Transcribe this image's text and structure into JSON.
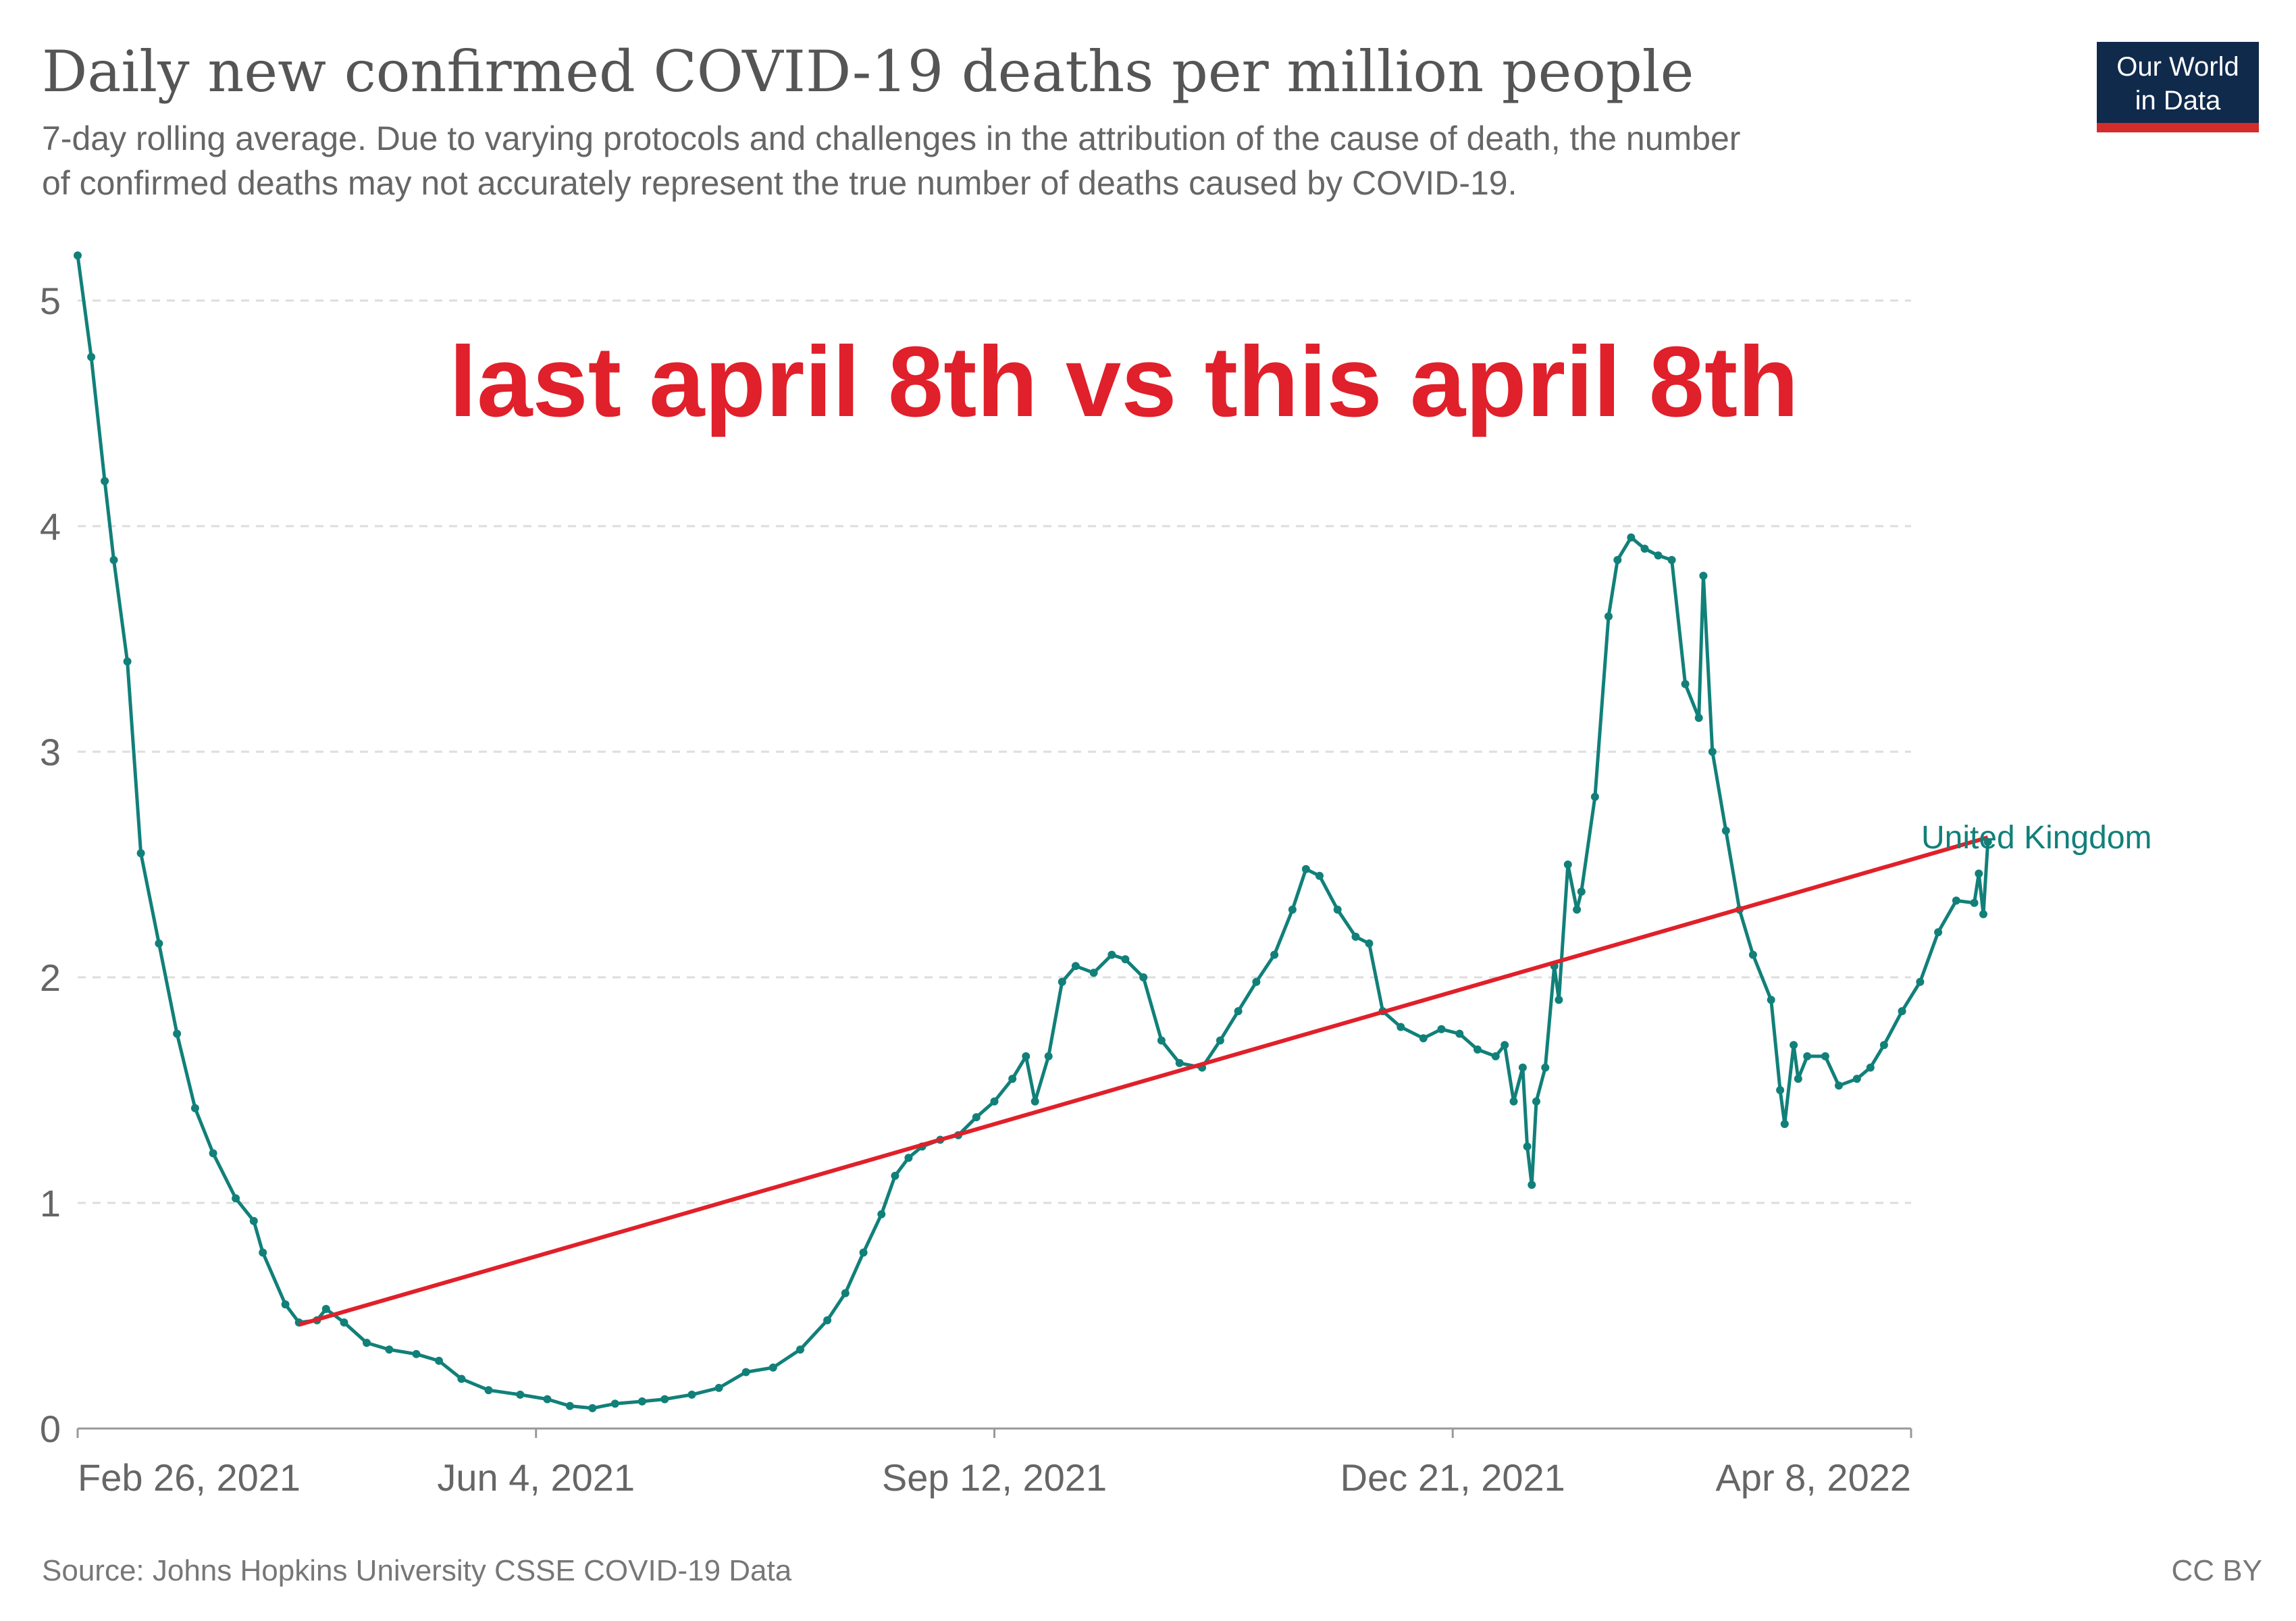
{
  "title": "Daily new confirmed COVID-19 deaths per million people",
  "subtitle_line1": "7-day rolling average. Due to varying protocols and challenges in the attribution of the cause of death, the number",
  "subtitle_line2": "of confirmed deaths may not accurately represent the true number of deaths caused by COVID-19.",
  "logo_line1": "Our World",
  "logo_line2": "in Data",
  "annotation": "last april 8th vs this april 8th",
  "source": "Source: Johns Hopkins University CSSE COVID-19 Data",
  "license": "CC BY",
  "colors": {
    "series": "#118079",
    "annotation": "#e0202a",
    "logo_bg": "#102a4c",
    "logo_stripe": "#d42b2b"
  },
  "chart_data": {
    "type": "line",
    "ylim": [
      0,
      5
    ],
    "yticks": [
      "0",
      "1",
      "2",
      "3",
      "4",
      "5"
    ],
    "xticks": [
      "Feb 26, 2021",
      "Jun 4, 2021",
      "Sep 12, 2021",
      "Dec 21, 2021",
      "Apr 8, 2022"
    ],
    "xlim": [
      "2021-02-26",
      "2022-04-08"
    ],
    "grid": true,
    "series": [
      {
        "name": "United Kingdom",
        "points": [
          [
            "2021-02-26",
            5.2
          ],
          [
            "2021-03-01",
            4.75
          ],
          [
            "2021-03-04",
            4.2
          ],
          [
            "2021-03-06",
            3.85
          ],
          [
            "2021-03-09",
            3.4
          ],
          [
            "2021-03-12",
            2.55
          ],
          [
            "2021-03-16",
            2.15
          ],
          [
            "2021-03-20",
            1.75
          ],
          [
            "2021-03-24",
            1.42
          ],
          [
            "2021-03-28",
            1.22
          ],
          [
            "2021-04-02",
            1.02
          ],
          [
            "2021-04-06",
            0.92
          ],
          [
            "2021-04-08",
            0.78
          ],
          [
            "2021-04-13",
            0.55
          ],
          [
            "2021-04-16",
            0.47
          ],
          [
            "2021-04-20",
            0.48
          ],
          [
            "2021-04-22",
            0.53
          ],
          [
            "2021-04-26",
            0.47
          ],
          [
            "2021-05-01",
            0.38
          ],
          [
            "2021-05-06",
            0.35
          ],
          [
            "2021-05-12",
            0.33
          ],
          [
            "2021-05-17",
            0.3
          ],
          [
            "2021-05-22",
            0.22
          ],
          [
            "2021-05-28",
            0.17
          ],
          [
            "2021-06-04",
            0.15
          ],
          [
            "2021-06-10",
            0.13
          ],
          [
            "2021-06-15",
            0.1
          ],
          [
            "2021-06-20",
            0.09
          ],
          [
            "2021-06-25",
            0.11
          ],
          [
            "2021-07-01",
            0.12
          ],
          [
            "2021-07-06",
            0.13
          ],
          [
            "2021-07-12",
            0.15
          ],
          [
            "2021-07-18",
            0.18
          ],
          [
            "2021-07-24",
            0.25
          ],
          [
            "2021-07-30",
            0.27
          ],
          [
            "2021-08-05",
            0.35
          ],
          [
            "2021-08-11",
            0.48
          ],
          [
            "2021-08-15",
            0.6
          ],
          [
            "2021-08-19",
            0.78
          ],
          [
            "2021-08-23",
            0.95
          ],
          [
            "2021-08-26",
            1.12
          ],
          [
            "2021-08-29",
            1.2
          ],
          [
            "2021-09-01",
            1.25
          ],
          [
            "2021-09-05",
            1.28
          ],
          [
            "2021-09-09",
            1.3
          ],
          [
            "2021-09-13",
            1.38
          ],
          [
            "2021-09-17",
            1.45
          ],
          [
            "2021-09-21",
            1.55
          ],
          [
            "2021-09-24",
            1.65
          ],
          [
            "2021-09-26",
            1.45
          ],
          [
            "2021-09-29",
            1.65
          ],
          [
            "2021-10-02",
            1.98
          ],
          [
            "2021-10-05",
            2.05
          ],
          [
            "2021-10-09",
            2.02
          ],
          [
            "2021-10-13",
            2.1
          ],
          [
            "2021-10-16",
            2.08
          ],
          [
            "2021-10-20",
            2.0
          ],
          [
            "2021-10-24",
            1.72
          ],
          [
            "2021-10-28",
            1.62
          ],
          [
            "2021-11-02",
            1.6
          ],
          [
            "2021-11-06",
            1.72
          ],
          [
            "2021-11-10",
            1.85
          ],
          [
            "2021-11-14",
            1.98
          ],
          [
            "2021-11-18",
            2.1
          ],
          [
            "2021-11-22",
            2.3
          ],
          [
            "2021-11-25",
            2.48
          ],
          [
            "2021-11-28",
            2.45
          ],
          [
            "2021-12-02",
            2.3
          ],
          [
            "2021-12-06",
            2.18
          ],
          [
            "2021-12-09",
            2.15
          ],
          [
            "2021-12-12",
            1.85
          ],
          [
            "2021-12-16",
            1.78
          ],
          [
            "2021-12-21",
            1.73
          ],
          [
            "2021-12-25",
            1.77
          ],
          [
            "2021-12-29",
            1.75
          ],
          [
            "2022-01-02",
            1.68
          ],
          [
            "2022-01-06",
            1.65
          ],
          [
            "2022-01-08",
            1.7
          ],
          [
            "2022-01-10",
            1.45
          ],
          [
            "2022-01-12",
            1.6
          ],
          [
            "2022-01-13",
            1.25
          ],
          [
            "2022-01-14",
            1.08
          ],
          [
            "2022-01-15",
            1.45
          ],
          [
            "2022-01-17",
            1.6
          ],
          [
            "2022-01-19",
            2.05
          ],
          [
            "2022-01-20",
            1.9
          ],
          [
            "2022-01-22",
            2.5
          ],
          [
            "2022-01-24",
            2.3
          ],
          [
            "2022-01-25",
            2.38
          ],
          [
            "2022-01-28",
            2.8
          ],
          [
            "2022-01-31",
            3.6
          ],
          [
            "2022-02-02",
            3.85
          ],
          [
            "2022-02-05",
            3.95
          ],
          [
            "2022-02-08",
            3.9
          ],
          [
            "2022-02-11",
            3.87
          ],
          [
            "2022-02-14",
            3.85
          ],
          [
            "2022-02-17",
            3.3
          ],
          [
            "2022-02-20",
            3.15
          ],
          [
            "2022-02-21",
            3.78
          ],
          [
            "2022-02-23",
            3.0
          ],
          [
            "2022-02-26",
            2.65
          ],
          [
            "2022-03-01",
            2.3
          ],
          [
            "2022-03-04",
            2.1
          ],
          [
            "2022-03-08",
            1.9
          ],
          [
            "2022-03-10",
            1.5
          ],
          [
            "2022-03-11",
            1.35
          ],
          [
            "2022-03-13",
            1.7
          ],
          [
            "2022-03-14",
            1.55
          ],
          [
            "2022-03-16",
            1.65
          ],
          [
            "2022-03-20",
            1.65
          ],
          [
            "2022-03-23",
            1.52
          ],
          [
            "2022-03-27",
            1.55
          ],
          [
            "2022-03-30",
            1.6
          ],
          [
            "2022-04-02",
            1.7
          ],
          [
            "2022-04-06",
            1.85
          ],
          [
            "2022-04-10",
            1.98
          ],
          [
            "2022-04-14",
            2.2
          ],
          [
            "2022-04-18",
            2.34
          ],
          [
            "2022-04-22",
            2.33
          ],
          [
            "2022-04-23",
            2.46
          ],
          [
            "2022-04-24",
            2.28
          ],
          [
            "2022-04-25",
            2.6
          ]
        ]
      }
    ],
    "trend_line": [
      [
        "2021-04-16",
        0.46
      ],
      [
        "2022-04-25",
        2.62
      ]
    ]
  }
}
